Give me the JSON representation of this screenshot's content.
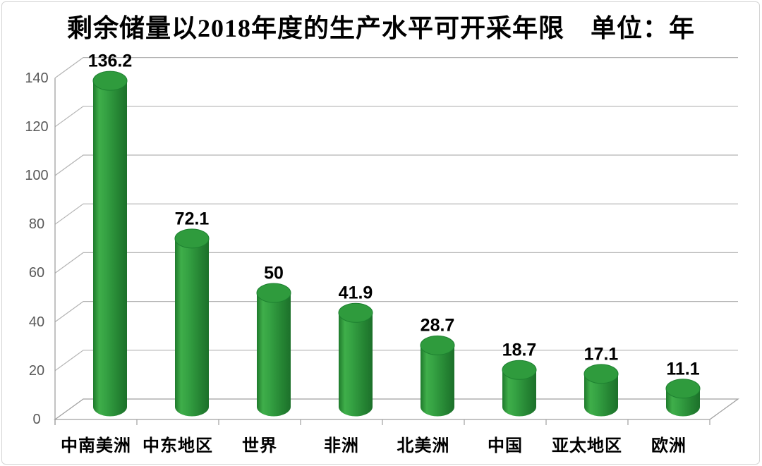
{
  "chart_data": {
    "type": "bar",
    "subtype": "3d-cylinder",
    "title": "剩余储量以2018年度的生产水平可开采年限　单位：年",
    "unit": "年",
    "categories": [
      "中南美洲",
      "中东地区",
      "世界",
      "非洲",
      "北美洲",
      "中国",
      "亚太地区",
      "欧洲"
    ],
    "values": [
      136.2,
      72.1,
      50,
      41.9,
      28.7,
      18.7,
      17.1,
      11.1
    ],
    "value_labels": [
      "136.2",
      "72.1",
      "50",
      "41.9",
      "28.7",
      "18.7",
      "17.1",
      "11.1"
    ],
    "y_ticks": [
      0,
      20,
      40,
      60,
      80,
      100,
      120,
      140
    ],
    "y_tick_labels": [
      "0",
      "20",
      "40",
      "60",
      "80",
      "100",
      "120",
      "140"
    ],
    "ylim": [
      0,
      140
    ],
    "grid": true,
    "legend": "none",
    "colors": {
      "bar_top": "#2f9b3d",
      "bar_top_rim": "#1d8030",
      "bar_body_edge_left": "#1f7a2c",
      "bar_body_highlight": "#3fae4a",
      "bar_body_mid": "#35a243",
      "bar_body_shade": "#268634",
      "bar_body_edge_right": "#1c702a",
      "gridline": "#b3b3b3",
      "axis": "#a0a0a0",
      "tick_label": "#595959",
      "data_label": "#000000",
      "category_label": "#000000",
      "title": "#000000",
      "background": "#ffffff",
      "frame_border": "#d4d4d4"
    }
  }
}
